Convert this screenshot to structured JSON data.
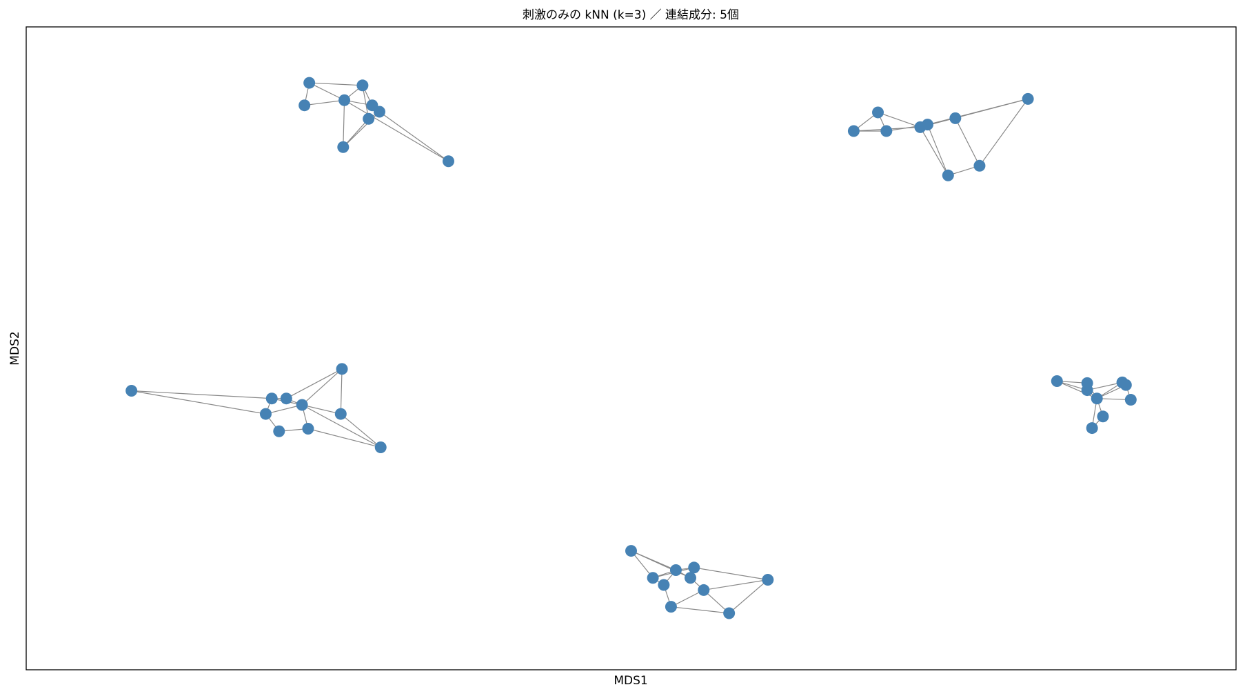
{
  "chart_data": {
    "type": "network",
    "title": "刺激のみの kNN (k=3) ／ 連結成分: 5個",
    "x_label": "MDS1",
    "y_label": "MDS2",
    "color": "#4682b4",
    "edge_color": "#888888",
    "xlim": [
      0,
      100
    ],
    "ylim": [
      0,
      100
    ],
    "x": [
      23.4,
      27.8,
      23.0,
      26.3,
      28.6,
      29.2,
      28.3,
      26.2,
      34.9,
      68.4,
      70.4,
      71.1,
      73.9,
      74.5,
      76.8,
      82.8,
      76.2,
      78.8,
      8.7,
      20.3,
      21.5,
      26.1,
      19.8,
      22.8,
      26.0,
      20.9,
      23.3,
      29.3,
      50.0,
      51.8,
      52.7,
      53.7,
      55.2,
      54.9,
      56.0,
      61.3,
      53.3,
      58.1,
      85.2,
      87.7,
      87.7,
      88.5,
      90.6,
      90.9,
      91.3,
      89.0,
      88.1
    ],
    "y": [
      91.3,
      90.9,
      87.8,
      88.6,
      87.8,
      86.8,
      85.7,
      81.3,
      79.1,
      83.8,
      86.7,
      83.8,
      84.4,
      84.8,
      85.8,
      88.8,
      76.9,
      78.4,
      43.4,
      42.2,
      42.2,
      46.8,
      39.8,
      41.2,
      39.8,
      37.1,
      37.5,
      34.6,
      18.5,
      14.3,
      13.2,
      15.5,
      15.9,
      14.3,
      12.4,
      14.0,
      9.8,
      8.8,
      44.9,
      44.6,
      43.5,
      42.2,
      44.7,
      44.3,
      42.0,
      39.4,
      37.6
    ],
    "edges": [
      [
        0,
        1
      ],
      [
        0,
        2
      ],
      [
        0,
        3
      ],
      [
        2,
        3
      ],
      [
        1,
        3
      ],
      [
        1,
        4
      ],
      [
        3,
        4
      ],
      [
        3,
        7
      ],
      [
        4,
        5
      ],
      [
        5,
        6
      ],
      [
        6,
        7
      ],
      [
        7,
        5
      ],
      [
        3,
        8
      ],
      [
        5,
        8
      ],
      [
        1,
        6
      ],
      [
        9,
        10
      ],
      [
        9,
        11
      ],
      [
        9,
        12
      ],
      [
        10,
        11
      ],
      [
        10,
        12
      ],
      [
        11,
        13
      ],
      [
        12,
        13
      ],
      [
        12,
        15
      ],
      [
        13,
        15
      ],
      [
        13,
        14
      ],
      [
        12,
        16
      ],
      [
        13,
        16
      ],
      [
        16,
        17
      ],
      [
        17,
        14
      ],
      [
        17,
        15
      ],
      [
        18,
        19
      ],
      [
        18,
        22
      ],
      [
        19,
        20
      ],
      [
        19,
        22
      ],
      [
        20,
        23
      ],
      [
        20,
        21
      ],
      [
        21,
        23
      ],
      [
        21,
        24
      ],
      [
        22,
        25
      ],
      [
        22,
        23
      ],
      [
        23,
        26
      ],
      [
        25,
        26
      ],
      [
        23,
        24
      ],
      [
        23,
        27
      ],
      [
        24,
        27
      ],
      [
        26,
        27
      ],
      [
        19,
        23
      ],
      [
        28,
        29
      ],
      [
        28,
        31
      ],
      [
        28,
        33
      ],
      [
        29,
        31
      ],
      [
        29,
        32
      ],
      [
        29,
        30
      ],
      [
        30,
        31
      ],
      [
        31,
        33
      ],
      [
        32,
        33
      ],
      [
        32,
        35
      ],
      [
        33,
        34
      ],
      [
        34,
        35
      ],
      [
        30,
        36
      ],
      [
        34,
        36
      ],
      [
        36,
        37
      ],
      [
        37,
        35
      ],
      [
        37,
        34
      ],
      [
        31,
        32
      ],
      [
        38,
        39
      ],
      [
        38,
        40
      ],
      [
        38,
        41
      ],
      [
        39,
        41
      ],
      [
        40,
        41
      ],
      [
        40,
        42
      ],
      [
        41,
        42
      ],
      [
        41,
        43
      ],
      [
        42,
        43
      ],
      [
        43,
        44
      ],
      [
        41,
        44
      ],
      [
        41,
        45
      ],
      [
        41,
        46
      ],
      [
        46,
        45
      ]
    ]
  }
}
